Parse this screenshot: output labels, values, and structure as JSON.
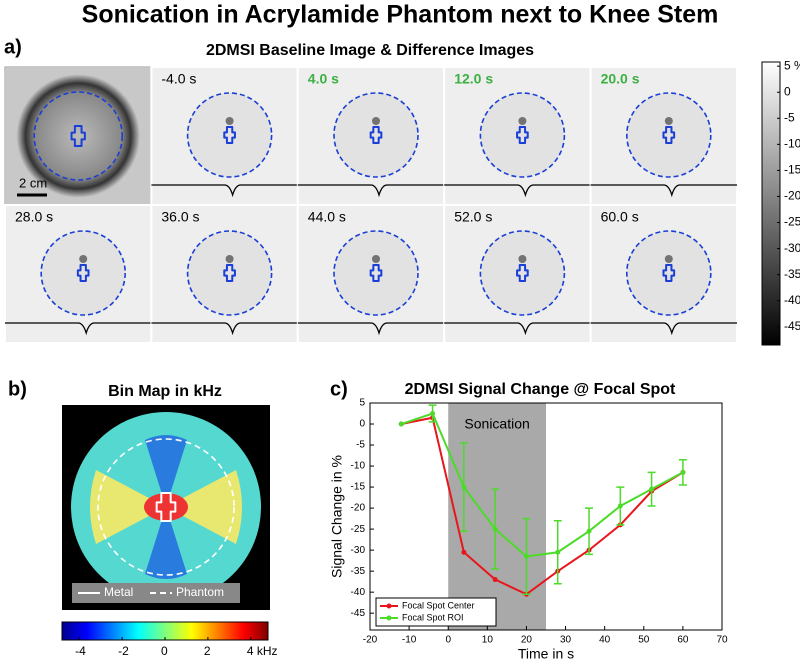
{
  "title": "Sonication in Acrylamide Phantom next to Knee Stem",
  "panel_a": {
    "label": "a)",
    "title": "2DMSI Baseline Image & Difference Images",
    "scale_bar": "2 cm",
    "frames": [
      {
        "time": "-4.0 s",
        "color": "#000000"
      },
      {
        "time": "4.0 s",
        "color": "#3cb043"
      },
      {
        "time": "12.0 s",
        "color": "#3cb043"
      },
      {
        "time": "20.0 s",
        "color": "#3cb043"
      },
      {
        "time": "28.0 s",
        "color": "#000000"
      },
      {
        "time": "36.0 s",
        "color": "#000000"
      },
      {
        "time": "44.0 s",
        "color": "#000000"
      },
      {
        "time": "52.0 s",
        "color": "#000000"
      },
      {
        "time": "60.0 s",
        "color": "#000000"
      }
    ],
    "colorbar": {
      "lim": [
        -48.5,
        5.8
      ],
      "ticks": [
        {
          "value": 5,
          "label": "5 %"
        },
        0,
        -5,
        -10,
        -15,
        -20,
        -25,
        -30,
        -35,
        -40,
        -45
      ]
    }
  },
  "panel_b": {
    "label": "b)",
    "title": "Bin Map in kHz",
    "legend": [
      "Metal",
      "Phantom"
    ],
    "colorbar": {
      "lim": [
        -4.8,
        4.8
      ],
      "ticks": [
        -4,
        -2,
        0,
        2,
        {
          "value": 4,
          "label": "4 kHz"
        }
      ]
    }
  },
  "chart_data": {
    "type": "line",
    "label": "c)",
    "title": "2DMSI Signal Change @ Focal Spot",
    "xlabel": "Time in s",
    "ylabel": "Signal Change in %",
    "xlim": [
      -20,
      70
    ],
    "xticks": [
      -20,
      -10,
      0,
      10,
      20,
      30,
      40,
      50,
      60,
      70
    ],
    "ylim": [
      -49,
      5
    ],
    "yticks": [
      5,
      0,
      -5,
      -10,
      -15,
      -20,
      -25,
      -30,
      -35,
      -40,
      -45
    ],
    "shade": {
      "x": [
        0,
        25
      ],
      "label": "Sonication",
      "color": "#a9a9a9"
    },
    "x": [
      -12,
      -4,
      4,
      12,
      20,
      28,
      36,
      44,
      52,
      60
    ],
    "series": [
      {
        "name": "Focal Spot Center",
        "color": "#e8161b",
        "values": [
          0,
          1.5,
          -30.5,
          -37,
          -40.5,
          -35,
          -30,
          -24,
          -16,
          -11.5
        ]
      },
      {
        "name": "Focal Spot ROI",
        "color": "#4ddb2a",
        "values": [
          0,
          2.5,
          -15,
          -25,
          -31.5,
          -30.5,
          -25.5,
          -19.5,
          -15.5,
          -11.5
        ],
        "errors": [
          null,
          2,
          10.5,
          9.5,
          9,
          7.5,
          5.5,
          4.5,
          4,
          3
        ]
      }
    ],
    "legend": "lower left"
  }
}
